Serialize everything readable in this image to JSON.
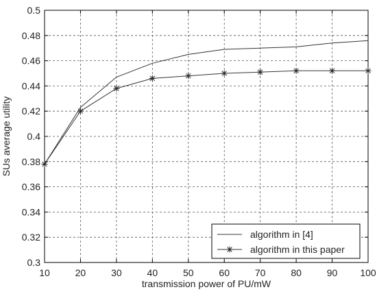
{
  "chart_data": {
    "type": "line",
    "title": "",
    "xlabel": "transmission power of PU/mW",
    "ylabel": "SUs average utility",
    "xlim": [
      10,
      100
    ],
    "ylim": [
      0.3,
      0.5
    ],
    "xticks": [
      10,
      20,
      30,
      40,
      50,
      60,
      70,
      80,
      90,
      100
    ],
    "yticks": [
      0.3,
      0.32,
      0.34,
      0.36,
      0.38,
      0.4,
      0.42,
      0.44,
      0.46,
      0.48,
      0.5
    ],
    "ytick_labels": [
      "0.3",
      "0.32",
      "0.34",
      "0.36",
      "0.38",
      "0.4",
      "0.42",
      "0.44",
      "0.46",
      "0.48",
      "0.5"
    ],
    "grid": true,
    "legend_position": "bottom-right",
    "x": [
      10,
      20,
      30,
      40,
      50,
      60,
      70,
      80,
      90,
      100
    ],
    "series": [
      {
        "name": "algorithm in [4]",
        "marker": "none",
        "color": "#333333",
        "values": [
          0.378,
          0.423,
          0.447,
          0.458,
          0.465,
          0.469,
          0.47,
          0.471,
          0.474,
          0.476
        ]
      },
      {
        "name": "algorithm in this paper",
        "marker": "star",
        "color": "#333333",
        "values": [
          0.378,
          0.42,
          0.438,
          0.446,
          0.448,
          0.45,
          0.451,
          0.452,
          0.452,
          0.452
        ]
      }
    ]
  }
}
